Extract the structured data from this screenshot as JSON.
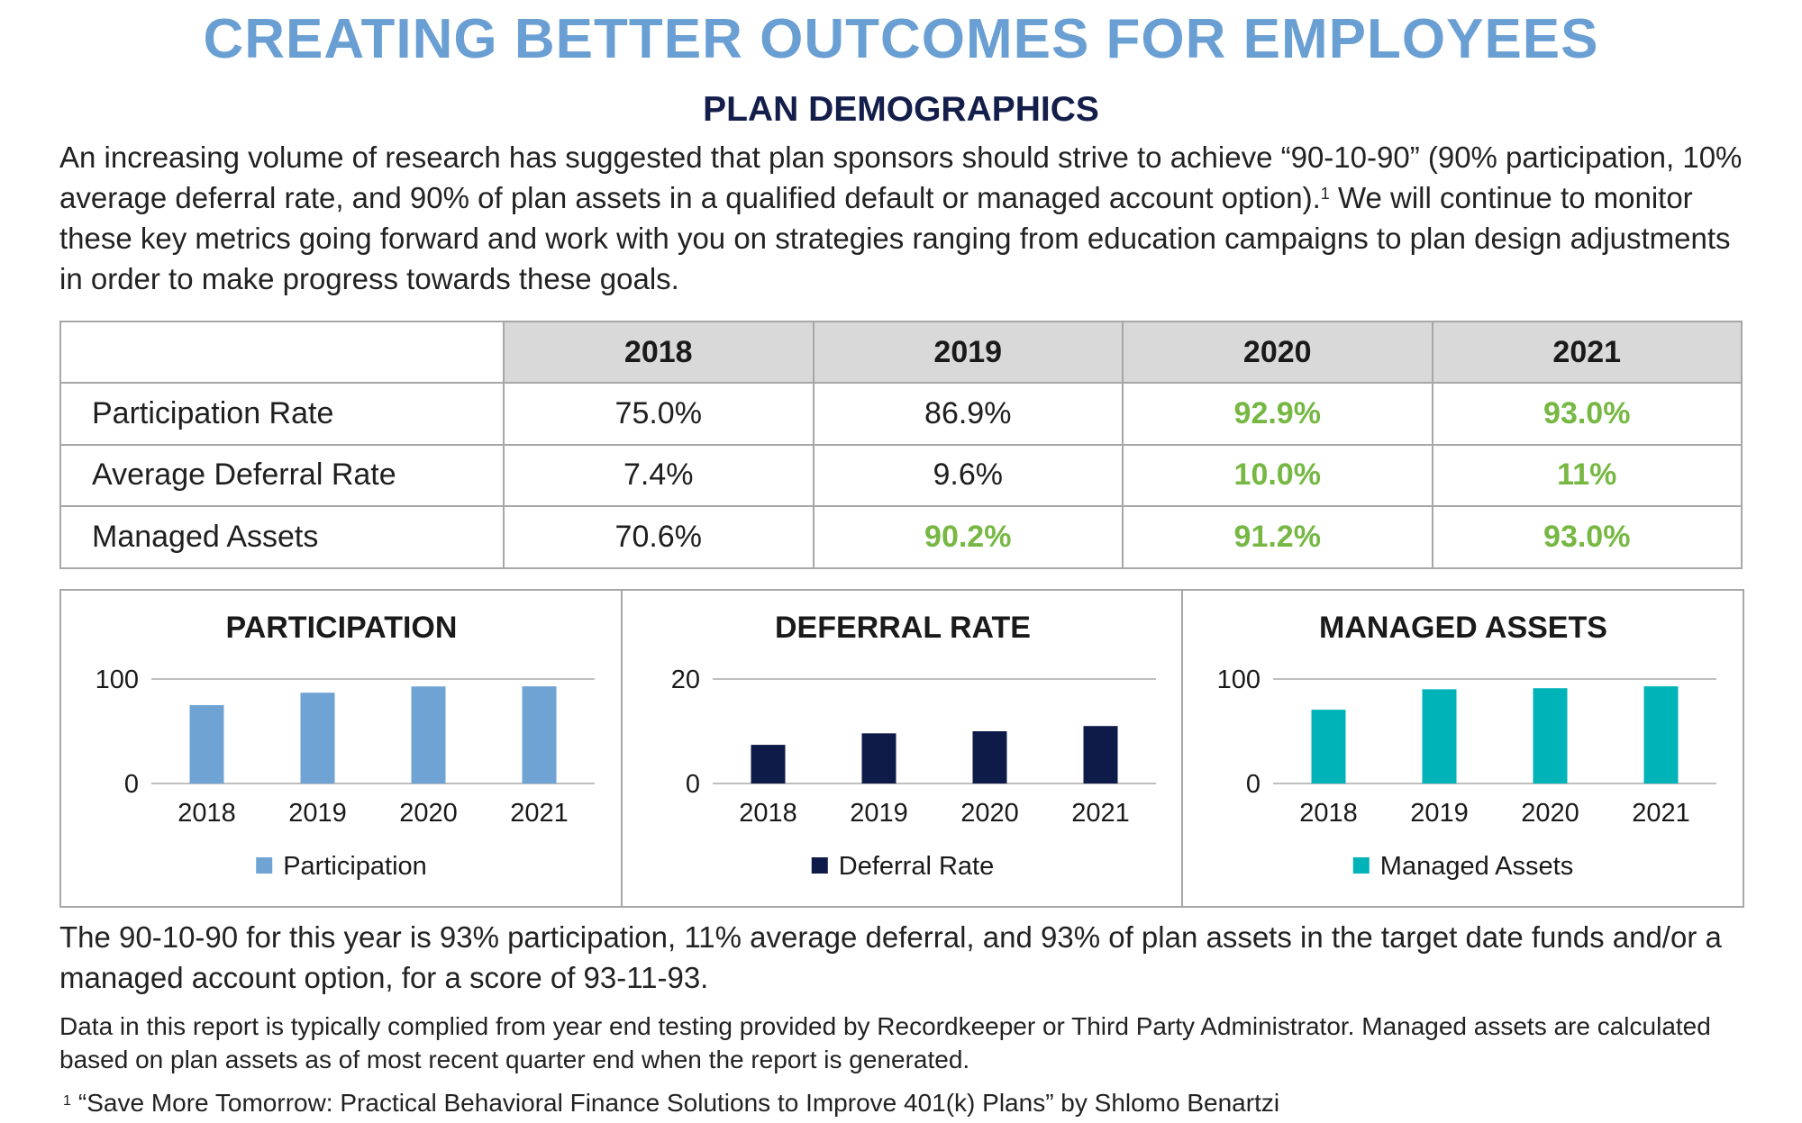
{
  "header": {
    "title": "CREATING BETTER OUTCOMES FOR EMPLOYEES",
    "subtitle": "PLAN DEMOGRAPHICS"
  },
  "intro": {
    "text": "An increasing volume of research has suggested that plan sponsors should strive to achieve “90-10-90” (90% participation, 10% average deferral rate, and 90% of plan assets in a qualified default or managed account option).",
    "footnote_ref": "1",
    "text2": "We will continue to monitor these key metrics going forward and work with you on strategies ranging from education campaigns to plan design adjustments in order to make progress towards these goals."
  },
  "table": {
    "columns": [
      "2018",
      "2019",
      "2020",
      "2021"
    ],
    "rows": [
      {
        "label": "Participation Rate",
        "values": [
          "75.0%",
          "86.9%",
          "92.9%",
          "93.0%"
        ],
        "highlight": [
          false,
          false,
          true,
          true
        ]
      },
      {
        "label": "Average Deferral Rate",
        "values": [
          "7.4%",
          "9.6%",
          "10.0%",
          "11%"
        ],
        "highlight": [
          false,
          false,
          true,
          true
        ]
      },
      {
        "label": "Managed Assets",
        "values": [
          "70.6%",
          "90.2%",
          "91.2%",
          "93.0%"
        ],
        "highlight": [
          false,
          true,
          true,
          true
        ]
      }
    ],
    "highlight_color": "#76b843"
  },
  "chart_data": [
    {
      "type": "bar",
      "title": "PARTICIPATION",
      "categories": [
        "2018",
        "2019",
        "2020",
        "2021"
      ],
      "series": [
        {
          "name": "Participation",
          "values": [
            75.0,
            86.9,
            92.9,
            93.0
          ]
        }
      ],
      "ylim": [
        0,
        100
      ],
      "yticks": [
        "0",
        "100"
      ],
      "color": "#6fa3d4",
      "grid": true,
      "legend": "bottom"
    },
    {
      "type": "bar",
      "title": "DEFERRAL RATE",
      "categories": [
        "2018",
        "2019",
        "2020",
        "2021"
      ],
      "series": [
        {
          "name": "Deferral Rate",
          "values": [
            7.4,
            9.6,
            10.0,
            11
          ]
        }
      ],
      "ylim": [
        0,
        20
      ],
      "yticks": [
        "0",
        "20"
      ],
      "color": "#0e1a48",
      "grid": true,
      "legend": "bottom"
    },
    {
      "type": "bar",
      "title": "MANAGED ASSETS",
      "categories": [
        "2018",
        "2019",
        "2020",
        "2021"
      ],
      "series": [
        {
          "name": "Managed Assets",
          "values": [
            70.6,
            90.2,
            91.2,
            93.0
          ]
        }
      ],
      "ylim": [
        0,
        100
      ],
      "yticks": [
        "0",
        "100"
      ],
      "color": "#00b3b8",
      "grid": true,
      "legend": "bottom"
    }
  ],
  "summary": "The 90-10-90 for this year is 93% participation, 11% average deferral, and 93% of plan assets in the target date funds and/or a managed account option, for a score of 93-11-93.",
  "note": "Data in this report is typically complied from year end testing provided by Recordkeeper or Third Party Administrator. Managed assets are calculated based on plan assets as of most recent quarter end when the report is generated.",
  "footnote": {
    "marker": "1",
    "text": "“Save More Tomorrow: Practical Behavioral Finance Solutions to Improve 401(k) Plans” by Shlomo Benartzi"
  }
}
